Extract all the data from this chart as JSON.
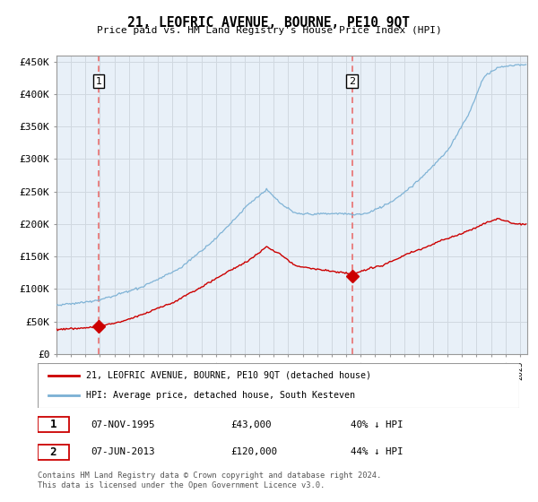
{
  "title": "21, LEOFRIC AVENUE, BOURNE, PE10 9QT",
  "subtitle": "Price paid vs. HM Land Registry's House Price Index (HPI)",
  "sale1_yr": 1995.917,
  "sale1_price": 43000,
  "sale2_yr": 2013.417,
  "sale2_price": 120000,
  "hpi_color": "#7ab0d4",
  "price_color": "#cc0000",
  "vline_color": "#e87070",
  "bg_blue": "#e8f0f8",
  "ylim": [
    0,
    460000
  ],
  "yticks": [
    0,
    50000,
    100000,
    150000,
    200000,
    250000,
    300000,
    350000,
    400000,
    450000
  ],
  "ytick_labels": [
    "£0",
    "£50K",
    "£100K",
    "£150K",
    "£200K",
    "£250K",
    "£300K",
    "£350K",
    "£400K",
    "£450K"
  ],
  "legend_line1": "21, LEOFRIC AVENUE, BOURNE, PE10 9QT (detached house)",
  "legend_line2": "HPI: Average price, detached house, South Kesteven",
  "note1_date": "07-NOV-1995",
  "note1_price": "£43,000",
  "note1_pct": "40% ↓ HPI",
  "note2_date": "07-JUN-2013",
  "note2_price": "£120,000",
  "note2_pct": "44% ↓ HPI",
  "footer": "Contains HM Land Registry data © Crown copyright and database right 2024.\nThis data is licensed under the Open Government Licence v3.0.",
  "grid_color": "#d0d8e0"
}
